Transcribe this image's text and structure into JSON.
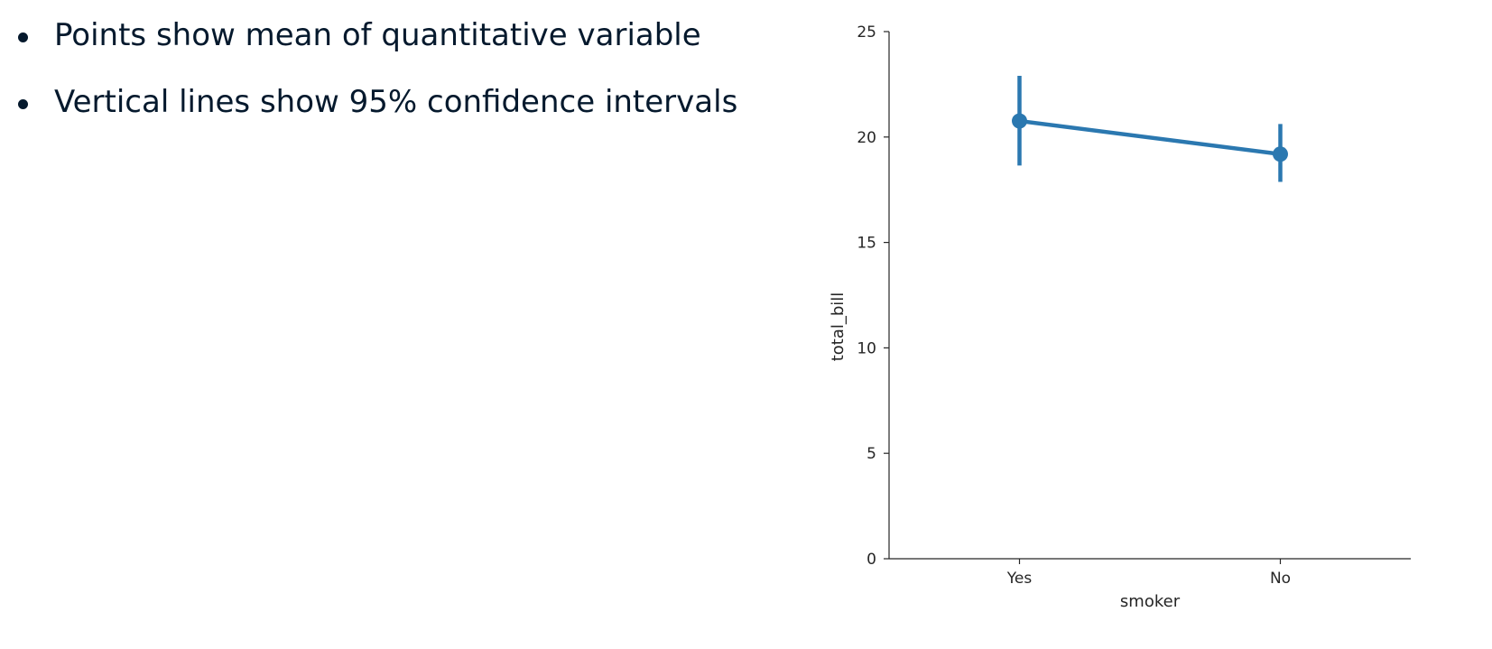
{
  "bullets": [
    "Points show mean of quantitative variable",
    "Vertical lines show 95% confidence intervals"
  ],
  "chart_data": {
    "type": "line",
    "chart_kind": "point plot with confidence intervals",
    "categories": [
      "Yes",
      "No"
    ],
    "series": [
      {
        "values": [
          20.76,
          19.19
        ],
        "ci_low": [
          18.65,
          17.87
        ],
        "ci_high": [
          22.9,
          20.62
        ]
      }
    ],
    "title": "",
    "xlabel": "smoker",
    "ylabel": "total_bill",
    "ylim": [
      0,
      25
    ],
    "yticks": [
      0,
      5,
      10,
      15,
      20,
      25
    ],
    "grid": false,
    "legend": "none",
    "colors": {
      "series": "#2b78b0",
      "axis": "#262626"
    }
  }
}
